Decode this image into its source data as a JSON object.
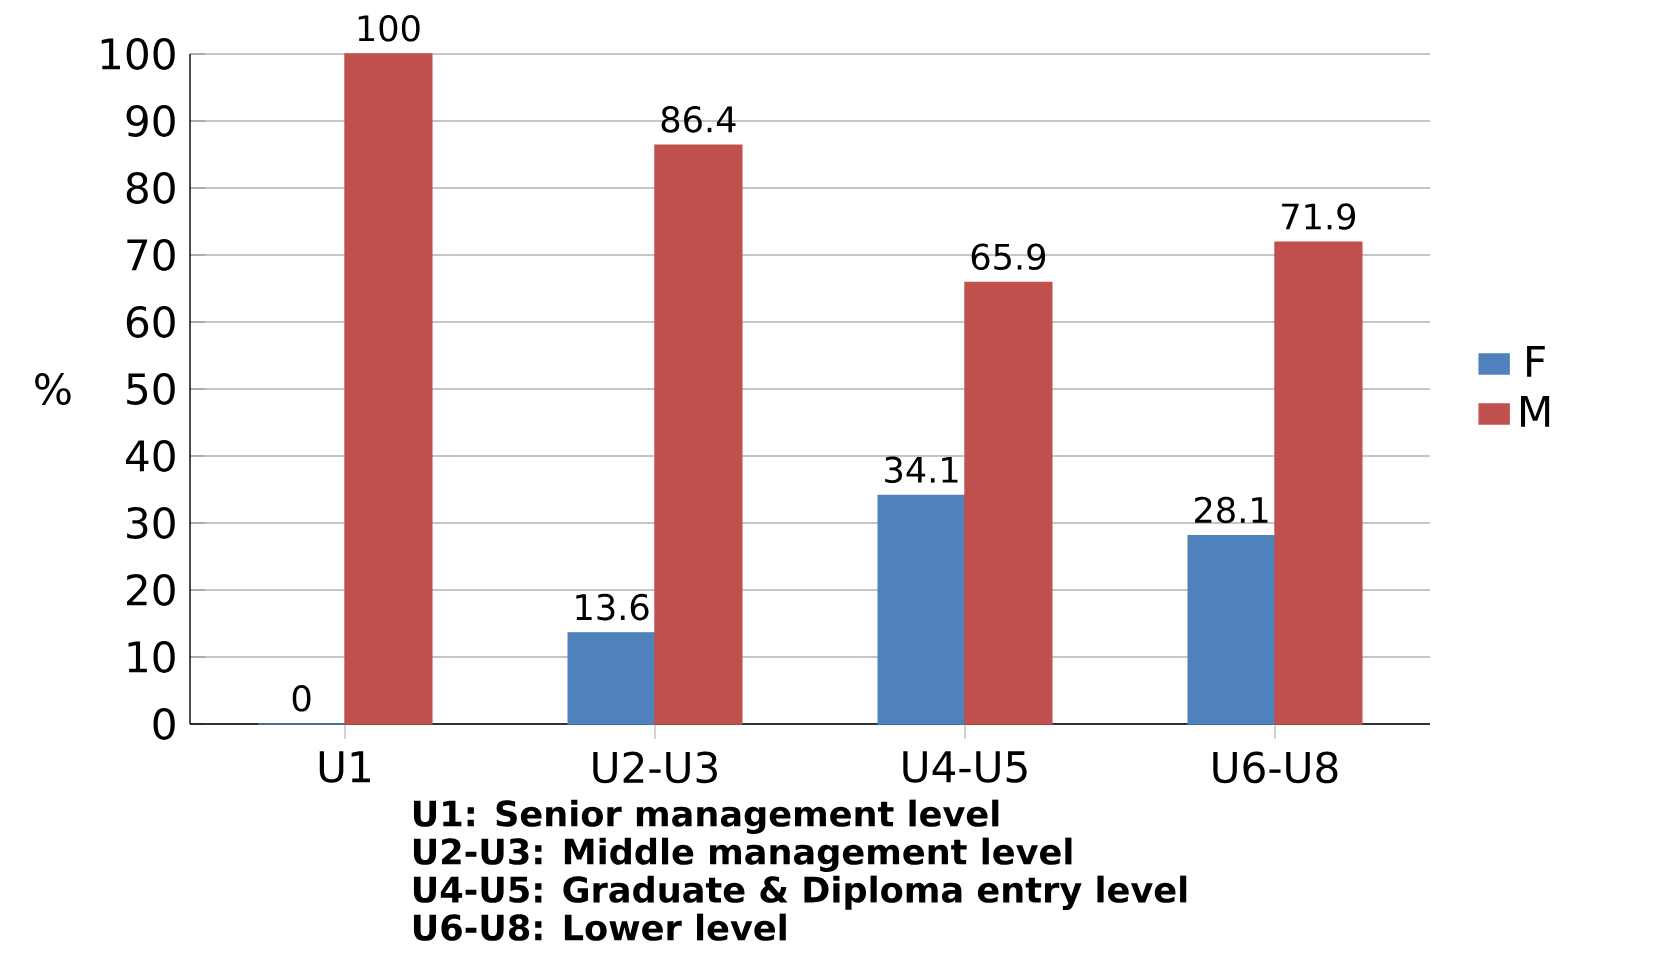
{
  "chart_data": {
    "type": "bar",
    "ylabel": "%",
    "categories": [
      "U1",
      "U2-U3",
      "U4-U5",
      "U6-U8"
    ],
    "series": [
      {
        "name": "F",
        "color": "#4f81bd",
        "values": [
          0,
          13.6,
          34.1,
          28.1
        ]
      },
      {
        "name": "M",
        "color": "#c0504d",
        "values": [
          100,
          86.4,
          65.9,
          71.9
        ]
      }
    ],
    "ylim": [
      0,
      100
    ],
    "yticks": [
      0,
      10,
      20,
      30,
      40,
      50,
      60,
      70,
      80,
      90,
      100
    ],
    "grid": "y",
    "legend": "right",
    "data_labels": true,
    "annotations": [
      "U1: Senior management level",
      "U2-U3: Middle management level",
      "U4-U5: Graduate & Diploma entry level",
      "U6-U8: Lower level"
    ]
  }
}
